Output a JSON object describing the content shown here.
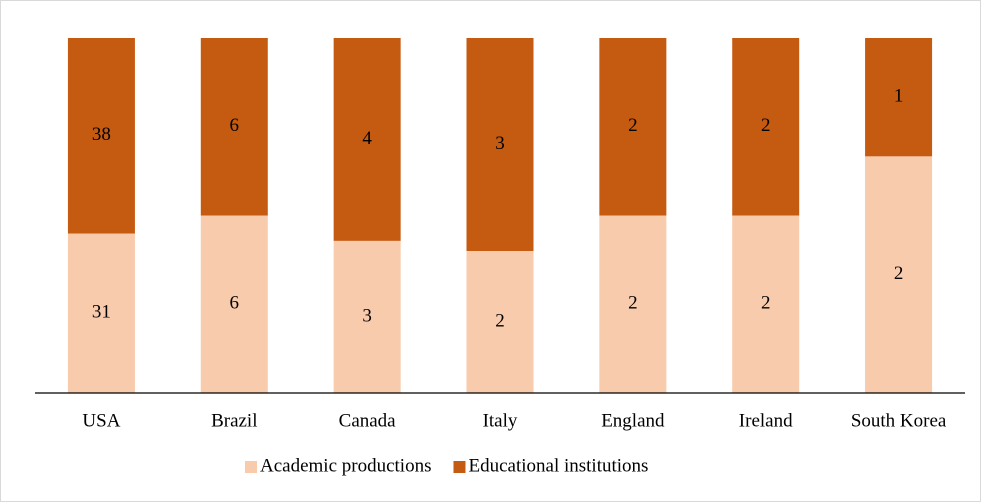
{
  "chart_data": {
    "type": "bar",
    "stacked": "percent",
    "categories": [
      "USA",
      "Brazil",
      "Canada",
      "Italy",
      "England",
      "Ireland",
      "South Korea"
    ],
    "series": [
      {
        "name": "Academic productions",
        "color": "#f8cbad",
        "values": [
          31,
          6,
          3,
          2,
          2,
          2,
          2
        ]
      },
      {
        "name": "Educational institutions",
        "color": "#c55a11",
        "values": [
          38,
          6,
          4,
          3,
          2,
          2,
          1
        ]
      }
    ],
    "legend": "bottom"
  }
}
